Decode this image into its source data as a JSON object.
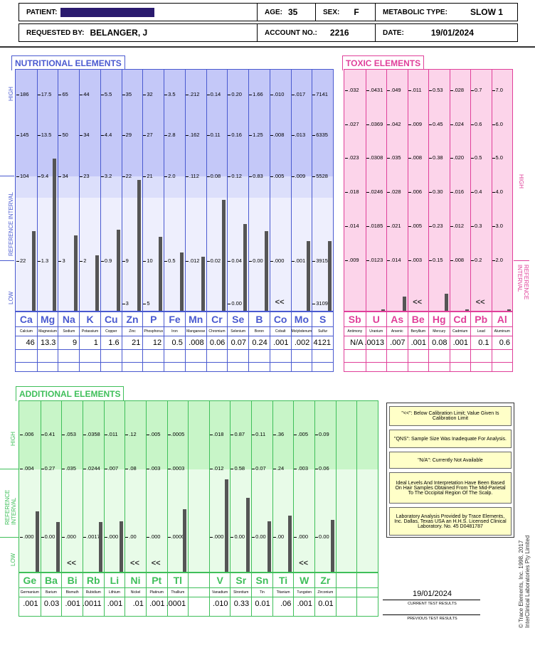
{
  "header": {
    "patient_label": "PATIENT:",
    "age_label": "AGE:",
    "age": "35",
    "sex_label": "SEX:",
    "sex": "F",
    "metabolic_label": "METABOLIC TYPE:",
    "metabolic": "SLOW 1",
    "requested_label": "REQUESTED BY:",
    "requested": "BELANGER, J",
    "account_label": "ACCOUNT NO.:",
    "account": "2216",
    "date_label": "DATE:",
    "date": "19/01/2024"
  },
  "nutritional": {
    "title": "NUTRITIONAL ELEMENTS",
    "side_label": "REFERENCE INTERVAL",
    "high": "HIGH",
    "low": "LOW",
    "elements": [
      {
        "sym": "Ca",
        "name": "Calcium",
        "value": "46",
        "level": 0.56,
        "ticks": [
          "186",
          "145",
          "104",
          "22"
        ]
      },
      {
        "sym": "Mg",
        "name": "Magnesium",
        "value": "13.3",
        "level": 1.07,
        "ticks": [
          "17.5",
          "13.5",
          "9.4",
          "1.3"
        ]
      },
      {
        "sym": "Na",
        "name": "Sodium",
        "value": "9",
        "level": 0.53,
        "ticks": [
          "65",
          "50",
          "34",
          "3"
        ]
      },
      {
        "sym": "K",
        "name": "Potassium",
        "value": "1",
        "level": 0.39,
        "ticks": [
          "44",
          "34",
          "23",
          "2"
        ]
      },
      {
        "sym": "Cu",
        "name": "Copper",
        "value": "1.6",
        "level": 0.57,
        "ticks": [
          "5.5",
          "4.4",
          "3.2",
          "0.9"
        ]
      },
      {
        "sym": "Zn",
        "name": "Zinc",
        "value": "21",
        "level": 0.92,
        "ticks": [
          "35",
          "29",
          "22",
          "9",
          "3"
        ]
      },
      {
        "sym": "P",
        "name": "Phosphorus",
        "value": "12",
        "level": 0.52,
        "ticks": [
          "32",
          "27",
          "21",
          "10",
          "5"
        ]
      },
      {
        "sym": "Fe",
        "name": "Iron",
        "value": "0.5",
        "level": 0.41,
        "ticks": [
          "3.5",
          "2.8",
          "2.0",
          "0.5"
        ]
      },
      {
        "sym": "Mn",
        "name": "Manganese",
        "value": ".008",
        "level": 0.38,
        "ticks": [
          ".212",
          ".162",
          ".112",
          ".012"
        ]
      },
      {
        "sym": "Cr",
        "name": "Chromium",
        "value": "0.06",
        "level": 0.78,
        "ticks": [
          "0.14",
          "0.11",
          "0.08",
          "0.02"
        ]
      },
      {
        "sym": "Se",
        "name": "Selenium",
        "value": "0.07",
        "level": 0.61,
        "ticks": [
          "0.20",
          "0.16",
          "0.12",
          "0.04",
          "0.00"
        ]
      },
      {
        "sym": "B",
        "name": "Boron",
        "value": "0.24",
        "level": 0.56,
        "ticks": [
          "1.66",
          "1.25",
          "0.83",
          "0.00"
        ]
      },
      {
        "sym": "Co",
        "name": "Cobalt",
        "value": ".001",
        "level": 0,
        "lt": "<<",
        "ticks": [
          ".010",
          ".008",
          ".005",
          ".000"
        ]
      },
      {
        "sym": "Mo",
        "name": "Molybdenum",
        "value": ".002",
        "level": 0.49,
        "ticks": [
          ".017",
          ".013",
          ".009",
          ".001"
        ]
      },
      {
        "sym": "S",
        "name": "Sulfur",
        "value": "4121",
        "level": 0.49,
        "ticks": [
          "7141",
          "6335",
          "5528",
          "3915",
          "3109"
        ]
      }
    ]
  },
  "toxic": {
    "title": "TOXIC ELEMENTS",
    "side_high": "HIGH",
    "side_ref": "REFERENCE INTERVAL",
    "elements": [
      {
        "sym": "Sb",
        "name": "Antimony",
        "value": "N/A",
        "level": 0,
        "ticks": [
          ".032",
          ".027",
          ".023",
          ".018",
          ".014",
          ".009"
        ]
      },
      {
        "sym": "U",
        "name": "Uranium",
        "value": ".0013",
        "level": 0.01,
        "ticks": [
          ".0431",
          ".0369",
          ".0308",
          ".0246",
          ".0185",
          ".0123"
        ]
      },
      {
        "sym": "As",
        "name": "Arsenic",
        "value": ".007",
        "level": 0.1,
        "ticks": [
          ".049",
          ".042",
          ".035",
          ".028",
          ".021",
          ".014"
        ]
      },
      {
        "sym": "Be",
        "name": "Beryllium",
        "value": ".001",
        "level": 0,
        "lt": "<<",
        "ticks": [
          ".011",
          ".009",
          ".008",
          ".006",
          ".005",
          ".003"
        ]
      },
      {
        "sym": "Hg",
        "name": "Mercury",
        "value": "0.08",
        "level": 0.12,
        "ticks": [
          "0.53",
          "0.45",
          "0.38",
          "0.30",
          "0.23",
          "0.15"
        ]
      },
      {
        "sym": "Cd",
        "name": "Cadmium",
        "value": ".001",
        "level": 0.01,
        "ticks": [
          ".028",
          ".024",
          ".020",
          ".016",
          ".012",
          ".008"
        ]
      },
      {
        "sym": "Pb",
        "name": "Lead",
        "value": "0.1",
        "level": 0,
        "lt": "<<",
        "ticks": [
          "0.7",
          "0.6",
          "0.5",
          "0.4",
          "0.3",
          "0.2"
        ]
      },
      {
        "sym": "Al",
        "name": "Aluminum",
        "value": "0.6",
        "level": 0.01,
        "ticks": [
          "7.0",
          "6.0",
          "5.0",
          "4.0",
          "3.0",
          "2.0"
        ]
      }
    ]
  },
  "additional": {
    "title": "ADDITIONAL ELEMENTS",
    "side_label": "REFERENCE INTERVAL",
    "high": "HIGH",
    "low": "LOW",
    "elements": [
      {
        "sym": "Ge",
        "name": "Germanium",
        "value": ".001",
        "level": 0.55,
        "ticks": [
          ".006",
          ".004",
          ".000"
        ]
      },
      {
        "sym": "Ba",
        "name": "Barium",
        "value": "0.03",
        "level": 0.45,
        "ticks": [
          "0.41",
          "0.27",
          "0.00"
        ]
      },
      {
        "sym": "Bi",
        "name": "Bismuth",
        "value": ".001",
        "level": 0,
        "lt": "<<",
        "ticks": [
          ".053",
          ".035",
          ".000"
        ]
      },
      {
        "sym": "Rb",
        "name": "Rubidium",
        "value": ".0011",
        "level": 0.45,
        "ticks": [
          ".0358",
          ".0244",
          ".0017"
        ]
      },
      {
        "sym": "Li",
        "name": "Lithium",
        "value": ".001",
        "level": 0.46,
        "ticks": [
          ".011",
          ".007",
          ".000"
        ]
      },
      {
        "sym": "Ni",
        "name": "Nickel",
        "value": ".01",
        "level": 0,
        "lt": "<<",
        "ticks": [
          ".12",
          ".08",
          ".00"
        ]
      },
      {
        "sym": "Pt",
        "name": "Platinum",
        "value": ".001",
        "level": 0,
        "lt": "<<",
        "ticks": [
          ".005",
          ".003",
          ".000"
        ]
      },
      {
        "sym": "Tl",
        "name": "Thallium",
        "value": ".0001",
        "level": 0.57,
        "ticks": [
          ".0005",
          ".0003",
          ".0000"
        ]
      },
      {
        "sym": "",
        "name": "",
        "value": "",
        "level": 0,
        "ticks": []
      },
      {
        "sym": "V",
        "name": "Vanadium",
        "value": ".010",
        "level": 0.84,
        "ticks": [
          ".018",
          ".012",
          ".000"
        ]
      },
      {
        "sym": "Sr",
        "name": "Strontium",
        "value": "0.33",
        "level": 0.67,
        "ticks": [
          "0.87",
          "0.58",
          "0.00"
        ]
      },
      {
        "sym": "Sn",
        "name": "Tin",
        "value": "0.01",
        "level": 0.46,
        "ticks": [
          "0.11",
          "0.07",
          "0.00"
        ]
      },
      {
        "sym": "Ti",
        "name": "Titanium",
        "value": ".06",
        "level": 0.51,
        "ticks": [
          ".36",
          ".24",
          ".00"
        ]
      },
      {
        "sym": "W",
        "name": "Tungsten",
        "value": ".001",
        "level": 0,
        "lt": "<<",
        "ticks": [
          ".005",
          ".003",
          ".000"
        ]
      },
      {
        "sym": "Zr",
        "name": "Zirconium",
        "value": "0.01",
        "level": 0.47,
        "ticks": [
          "0.09",
          "0.06",
          "0.00"
        ]
      },
      {
        "sym": "",
        "name": "",
        "value": "",
        "level": 0,
        "ticks": []
      },
      {
        "sym": "",
        "name": "",
        "value": "",
        "level": 0,
        "ticks": []
      }
    ]
  },
  "legend": {
    "items": [
      "\"<<\": Below Calibration Limit; Value Given Is Calibration Limit",
      "\"QNS\": Sample Size Was Inadequate For Analysis.",
      "\"N/A\": Currently Not Available",
      "Ideal Levels And Interpretation Have Been Based On Hair Samples Obtained From The Mid-Parietal To The Occipital Region Of The Scalp.",
      "Laboratory Analysis Provided by Trace Elements, Inc. Dallas, Texas USA an H.H.S. Licensed Clinical Laboratory. No. 45 D0481787"
    ]
  },
  "results": {
    "current_date": "19/01/2024",
    "current_label": "CURRENT TEST RESULTS",
    "previous_label": "PREVIOUS TEST RESULTS"
  },
  "copyright": {
    "line1": "© Trace Elements, Inc. 1998, 2017",
    "line2": "InterClinical Laboratories Pty Limited"
  },
  "colors": {
    "nutri_border": "#4a5ad0",
    "nutri_high": "#c4c8f8",
    "nutri_mid": "#dcdffb",
    "nutri_ref": "#eeeffd",
    "toxic_border": "#e0409a",
    "toxic_fill": "#fcd4ea",
    "add_border": "#3fbf5a",
    "add_high": "#c8f5c8",
    "add_ref": "#e8fbe8"
  }
}
